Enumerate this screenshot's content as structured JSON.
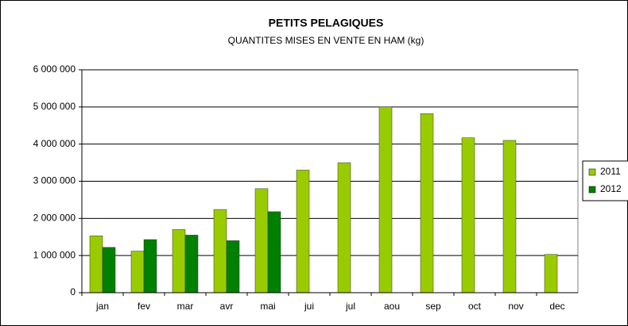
{
  "chart_data": {
    "type": "bar",
    "title": "PETITS PELAGIQUES",
    "subtitle": "QUANTITES MISES EN VENTE EN HAM (kg)",
    "categories": [
      "jan",
      "fev",
      "mar",
      "avr",
      "mai",
      "jui",
      "jul",
      "aou",
      "sep",
      "oct",
      "nov",
      "dec"
    ],
    "series": [
      {
        "name": "2011",
        "color": "#99cc00",
        "values": [
          1530000,
          1120000,
          1700000,
          2240000,
          2800000,
          3300000,
          3500000,
          5000000,
          4820000,
          4170000,
          4100000,
          1030000
        ]
      },
      {
        "name": "2012",
        "color": "#008000",
        "values": [
          1220000,
          1430000,
          1550000,
          1400000,
          2180000,
          null,
          null,
          null,
          null,
          null,
          null,
          null
        ]
      }
    ],
    "ylim": [
      0,
      6000000
    ],
    "yticks": [
      0,
      {
        "value": 1000000,
        "label": "1 000 000"
      },
      {
        "value": 2000000,
        "label": "2 000 000"
      },
      {
        "value": 3000000,
        "label": "3 000 000"
      },
      {
        "value": 4000000,
        "label": "4 000 000"
      },
      {
        "value": 5000000,
        "label": "5 000 000"
      },
      {
        "value": 6000000,
        "label": "6 000 000"
      }
    ],
    "grid": true,
    "legend": "right"
  }
}
